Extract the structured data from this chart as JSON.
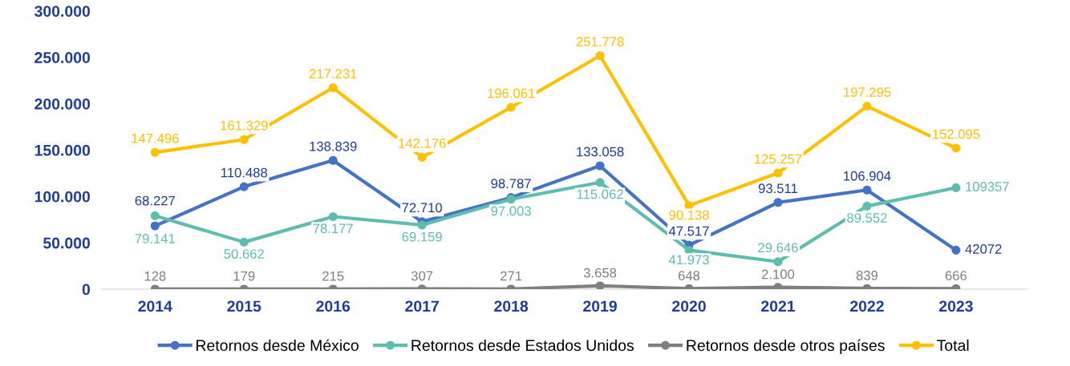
{
  "chart_data": {
    "type": "line",
    "categories": [
      "2014",
      "2015",
      "2016",
      "2017",
      "2018",
      "2019",
      "2020",
      "2021",
      "2022",
      "2023"
    ],
    "series": [
      {
        "name": "Retornos desde México",
        "color": "#4472c4",
        "values": [
          68227,
          110488,
          138839,
          72710,
          98787,
          133058,
          47517,
          93511,
          106904,
          42072
        ],
        "value_labels": [
          "68.227",
          "110.488",
          "138.839",
          "72.710",
          "98.787",
          "133.058",
          "47.517",
          "93.511",
          "106.904",
          "42072"
        ]
      },
      {
        "name": "Retornos desde Estados Unidos",
        "color": "#5dbdae",
        "values": [
          79141,
          50662,
          78177,
          69159,
          97003,
          115062,
          41973,
          29646,
          89552,
          109357
        ],
        "value_labels": [
          "79.141",
          "50.662",
          "78.177",
          "69.159",
          "97.003",
          "115.062",
          "41.973",
          "29.646",
          "89.552",
          "109357"
        ]
      },
      {
        "name": "Retornos desde otros países",
        "color": "#7f7f7f",
        "values": [
          128,
          179,
          215,
          307,
          271,
          3658,
          648,
          2100,
          839,
          666
        ],
        "value_labels": [
          "128",
          "179",
          "215",
          "307",
          "271",
          "3.658",
          "648",
          "2.100",
          "839",
          "666"
        ]
      },
      {
        "name": "Total",
        "color": "#ffc000",
        "values": [
          147496,
          161329,
          217231,
          142176,
          196061,
          251778,
          90138,
          125257,
          197295,
          152095
        ],
        "value_labels": [
          "147.496",
          "161.329",
          "217.231",
          "142.176",
          "196.061",
          "251.778",
          "90.138",
          "125.257",
          "197.295",
          "152.095"
        ]
      }
    ],
    "ylim": [
      0,
      300000
    ],
    "yticks": [
      {
        "value": 0,
        "label": "0"
      },
      {
        "value": 50000,
        "label": "50.000"
      },
      {
        "value": 100000,
        "label": "100.000"
      },
      {
        "value": 150000,
        "label": "150.000"
      },
      {
        "value": 200000,
        "label": "200.000"
      },
      {
        "value": 250000,
        "label": "250.000"
      },
      {
        "value": 300000,
        "label": "300.000"
      }
    ],
    "grid": false,
    "legend": "bottom",
    "marker": "circle",
    "line_style": "solid"
  }
}
